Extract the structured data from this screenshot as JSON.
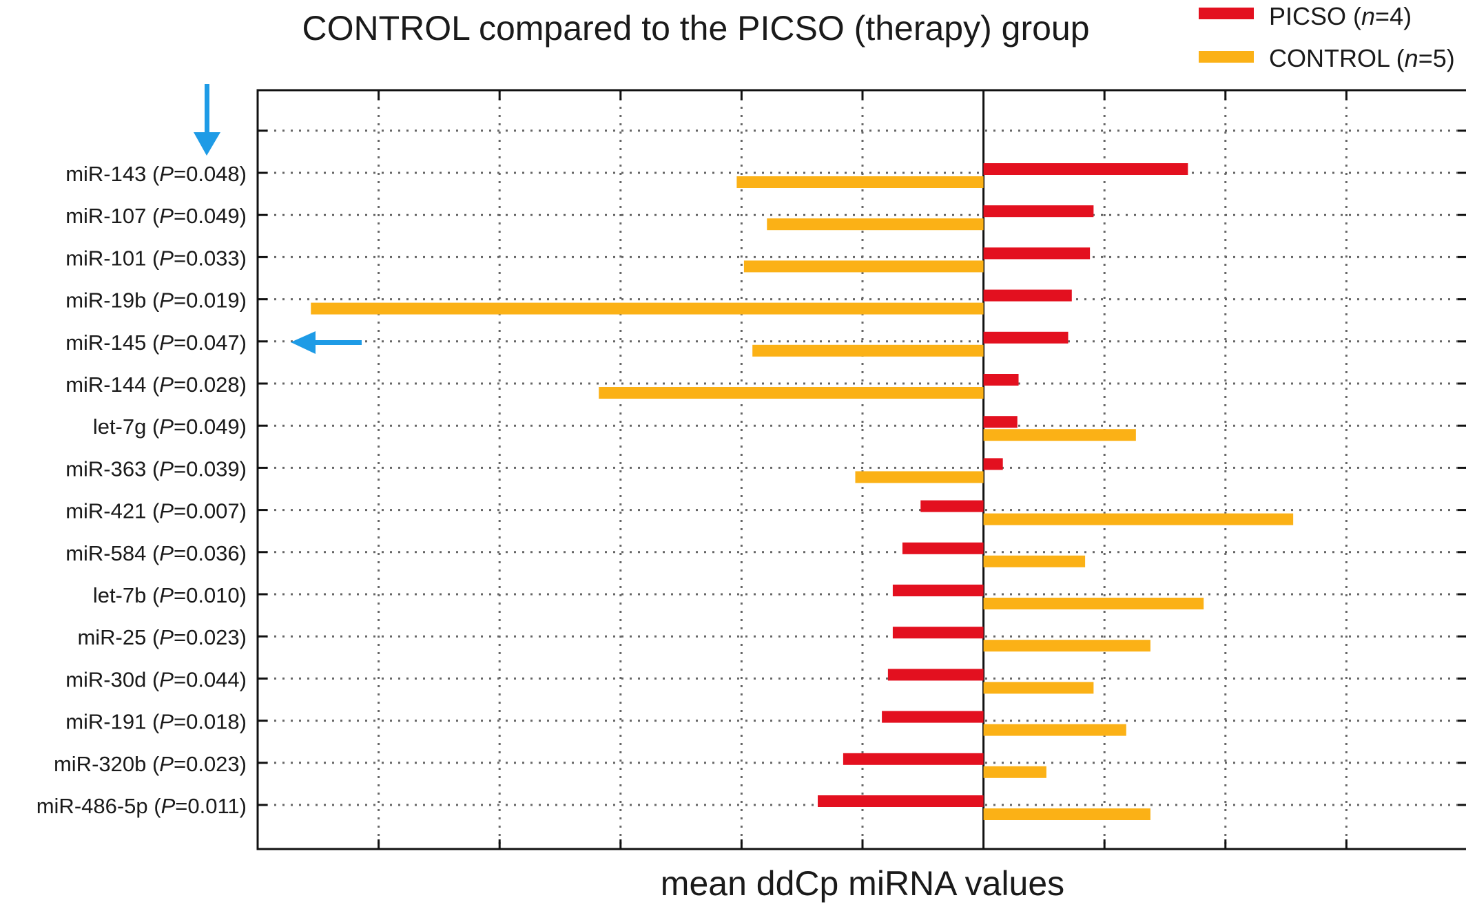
{
  "chart_data": {
    "type": "bar",
    "orientation": "horizontal",
    "title": "CONTROL compared to the PICSO (therapy) group",
    "xlabel": "mean ddCp miRNA values",
    "ylabel": "",
    "xlim": [
      -6,
      4
    ],
    "grid": true,
    "x_tick_labels_shown": false,
    "legend_position": "top-right",
    "categories": [
      {
        "name": "miR-143",
        "p": "0.048"
      },
      {
        "name": "miR-107",
        "p": "0.049"
      },
      {
        "name": "miR-101",
        "p": "0.033"
      },
      {
        "name": "miR-19b",
        "p": "0.019"
      },
      {
        "name": "miR-145",
        "p": "0.047"
      },
      {
        "name": "miR-144",
        "p": "0.028"
      },
      {
        "name": "let-7g",
        "p": "0.049"
      },
      {
        "name": "miR-363",
        "p": "0.039"
      },
      {
        "name": "miR-421",
        "p": "0.007"
      },
      {
        "name": "miR-584",
        "p": "0.036"
      },
      {
        "name": "let-7b",
        "p": "0.010"
      },
      {
        "name": "miR-25",
        "p": "0.023"
      },
      {
        "name": "miR-30d",
        "p": "0.044"
      },
      {
        "name": "miR-191",
        "p": "0.018"
      },
      {
        "name": "miR-320b",
        "p": "0.023"
      },
      {
        "name": "miR-486-5p",
        "p": "0.011"
      }
    ],
    "series": [
      {
        "name": "PICSO",
        "n": "4",
        "color": "#e3101f",
        "values": [
          1.69,
          0.91,
          0.88,
          0.73,
          0.7,
          0.29,
          0.28,
          0.16,
          -0.52,
          -0.67,
          -0.75,
          -0.75,
          -0.79,
          -0.84,
          -1.16,
          -1.37
        ]
      },
      {
        "name": "CONTROL",
        "n": "5",
        "color": "#fbb116",
        "values": [
          -2.04,
          -1.79,
          -1.98,
          -5.56,
          -1.91,
          -3.18,
          1.26,
          -1.06,
          2.56,
          0.84,
          1.82,
          1.38,
          0.91,
          1.18,
          0.52,
          1.38
        ]
      }
    ],
    "annotations": [
      {
        "type": "arrow-down",
        "color": "#1e9be6",
        "target": "miR-143"
      },
      {
        "type": "arrow-left",
        "color": "#1e9be6",
        "target": "miR-145"
      }
    ]
  }
}
